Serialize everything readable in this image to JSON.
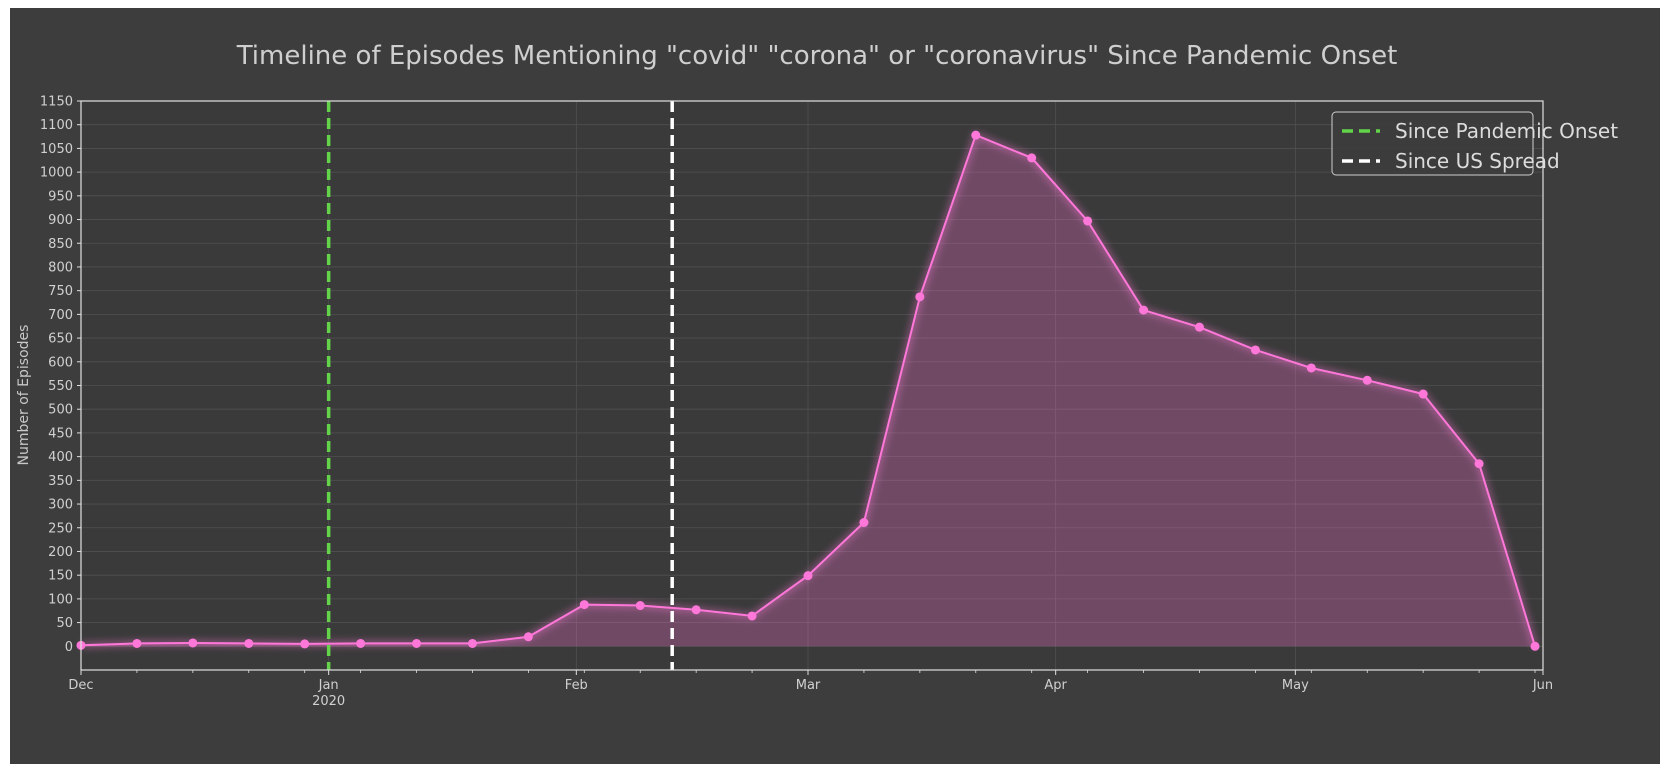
{
  "colors": {
    "figure_bg": "#3d3d3d",
    "series": "#ff77d9",
    "pandemic_line": "#63d34a",
    "us_line": "#ffffff",
    "grid": "#505050",
    "axes_frame": "#e0e0e0"
  },
  "chart_data": {
    "type": "area",
    "title": "Timeline of Episodes Mentioning \"covid\" \"corona\" or \"coronavirus\" Since Pandemic Onset",
    "xlabel": "",
    "ylabel": "Number of Episodes",
    "xlim": [
      "2019-12-01",
      "2020-06-01"
    ],
    "ylim": [
      -50,
      1150
    ],
    "yticks": [
      0,
      50,
      100,
      150,
      200,
      250,
      300,
      350,
      400,
      450,
      500,
      550,
      600,
      650,
      700,
      750,
      800,
      850,
      900,
      950,
      1000,
      1050,
      1100,
      1150
    ],
    "xticks": [
      {
        "date": "2019-12-01",
        "label": "Dec",
        "sublabel": ""
      },
      {
        "date": "2020-01-01",
        "label": "Jan",
        "sublabel": "2020"
      },
      {
        "date": "2020-02-01",
        "label": "Feb",
        "sublabel": ""
      },
      {
        "date": "2020-03-01",
        "label": "Mar",
        "sublabel": ""
      },
      {
        "date": "2020-04-01",
        "label": "Apr",
        "sublabel": ""
      },
      {
        "date": "2020-05-01",
        "label": "May",
        "sublabel": ""
      },
      {
        "date": "2020-06-01",
        "label": "Jun",
        "sublabel": ""
      }
    ],
    "grid": true,
    "series": [
      {
        "x": [
          "2019-12-01",
          "2019-12-08",
          "2019-12-15",
          "2019-12-22",
          "2019-12-29",
          "2020-01-05",
          "2020-01-12",
          "2020-01-19",
          "2020-01-26",
          "2020-02-02",
          "2020-02-09",
          "2020-02-16",
          "2020-02-23",
          "2020-03-01",
          "2020-03-08",
          "2020-03-15",
          "2020-03-22",
          "2020-03-29",
          "2020-04-05",
          "2020-04-12",
          "2020-04-19",
          "2020-04-26",
          "2020-05-03",
          "2020-05-10",
          "2020-05-17",
          "2020-05-24",
          "2020-05-31",
          "2020-06-07"
        ],
        "values": [
          2,
          6,
          7,
          6,
          5,
          6,
          6,
          6,
          20,
          88,
          86,
          77,
          64,
          149,
          261,
          737,
          1078,
          1030,
          897,
          709,
          673,
          625,
          587,
          561,
          532,
          385,
          0,
          0
        ]
      }
    ],
    "vlines": [
      {
        "date": "2020-01-01",
        "label": "Since Pandemic Onset",
        "style": "dashed",
        "color": "#63d34a"
      },
      {
        "date": "2020-02-13",
        "label": "Since US Spread",
        "style": "dashed",
        "color": "#ffffff"
      }
    ],
    "legend_position": "top-right"
  }
}
